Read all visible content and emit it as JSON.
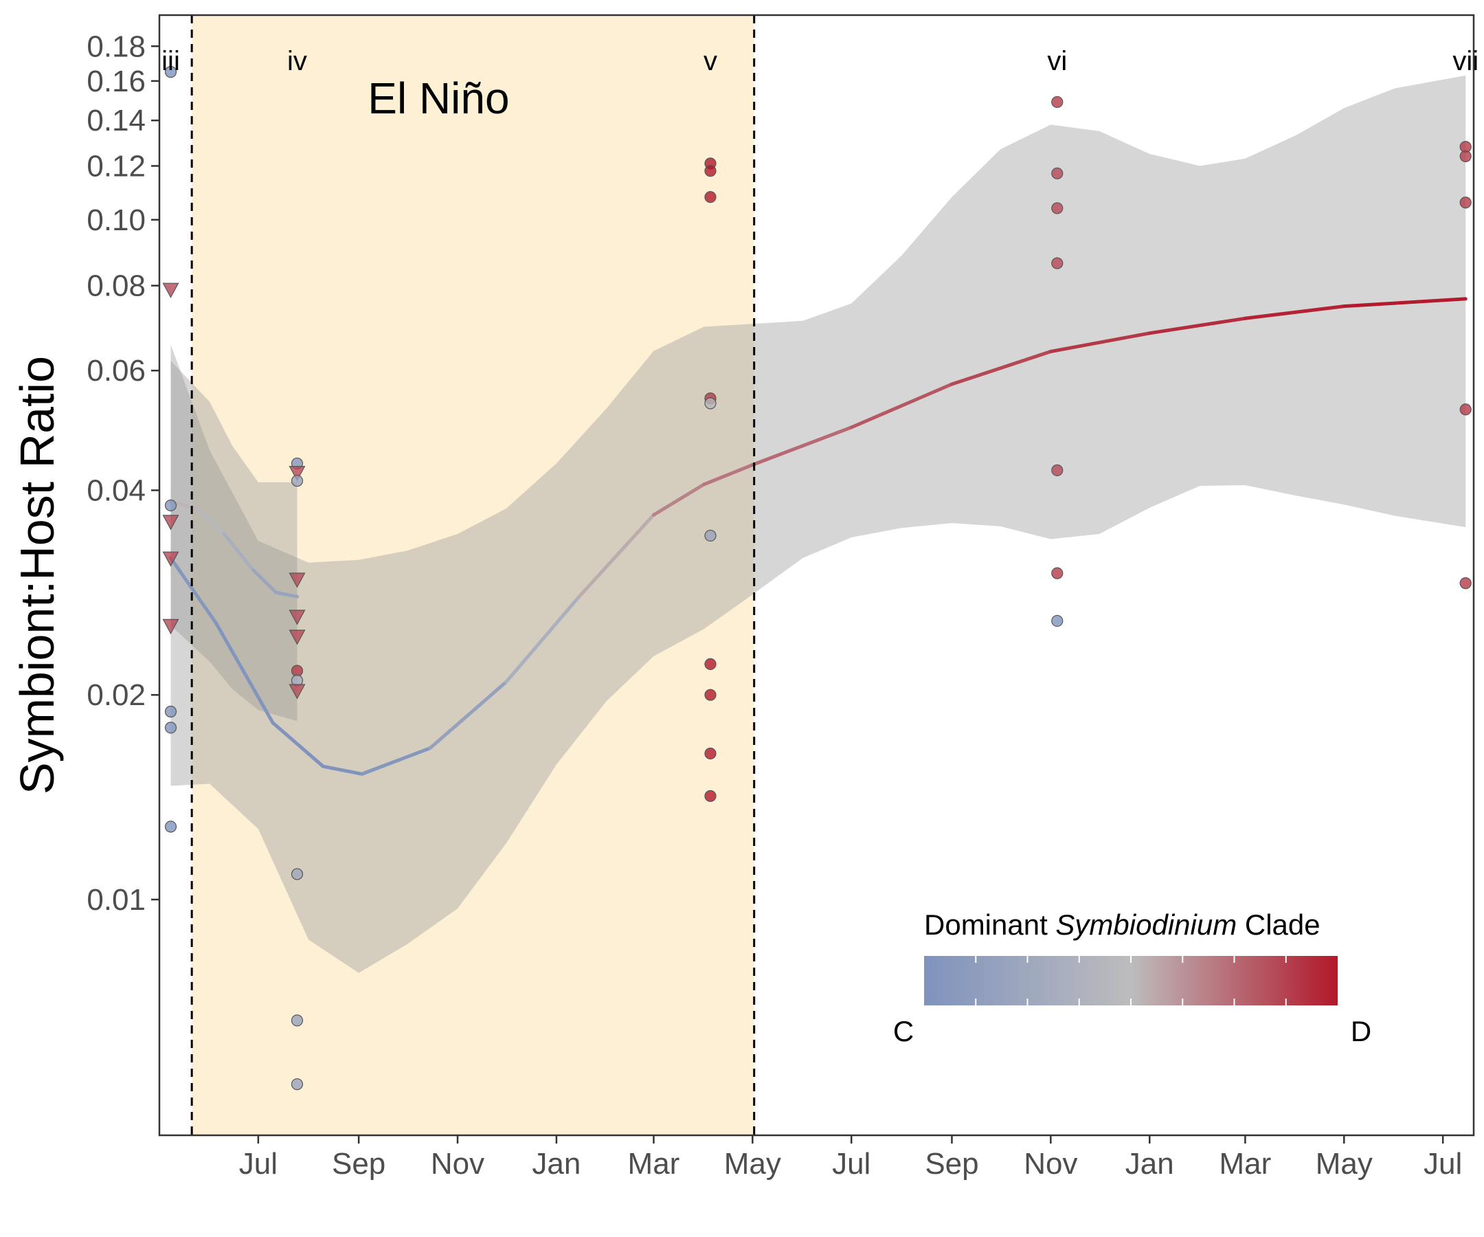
{
  "chart_data": {
    "type": "scatter",
    "title": "",
    "xlabel": "",
    "ylabel": "Symbiont:Host Ratio",
    "y_scale": "log",
    "ylim": [
      0.0045,
      0.2
    ],
    "xlim": [
      "2015-05-01",
      "2017-07-20"
    ],
    "y_ticks": [
      0.01,
      0.02,
      0.04,
      0.06,
      0.08,
      0.1,
      0.12,
      0.14,
      0.16,
      0.18
    ],
    "y_tick_labels": [
      "0.01",
      "0.02",
      "0.04",
      "0.06",
      "0.08",
      "0.10",
      "0.12",
      "0.14",
      "0.16",
      "0.18"
    ],
    "x_ticks": [
      "2015-07-01",
      "2015-09-01",
      "2015-11-01",
      "2016-01-01",
      "2016-03-01",
      "2016-05-01",
      "2016-07-01",
      "2016-09-01",
      "2016-11-01",
      "2017-01-01",
      "2017-03-01",
      "2017-05-01",
      "2017-07-01"
    ],
    "x_tick_labels": [
      "Jul",
      "Sep",
      "Nov",
      "Jan",
      "Mar",
      "May",
      "Jul",
      "Sep",
      "Nov",
      "Jan",
      "Mar",
      "May",
      "Jul"
    ],
    "grid": false,
    "el_nino": {
      "label": "El Niño",
      "start": "2015-05-21",
      "end": "2016-05-02",
      "color": "#fdf0d5"
    },
    "periods": [
      {
        "label": "iii",
        "date": "2015-05-08"
      },
      {
        "label": "iv",
        "date": "2015-07-25"
      },
      {
        "label": "v",
        "date": "2016-04-05"
      },
      {
        "label": "vi",
        "date": "2016-11-05"
      },
      {
        "label": "vii",
        "date": "2017-07-15"
      }
    ],
    "legend": {
      "title_prefix": "Dominant ",
      "title_italic": "Symbiodinium",
      "title_suffix": " Clade",
      "low_label": "C",
      "high_label": "D",
      "position": "bottom-right"
    },
    "colors": {
      "C": "#7f93bd",
      "mid": "#bdbcbd",
      "D": "#b2182b"
    },
    "points": [
      {
        "date": "2015-05-08",
        "y": 0.165,
        "c": 0.0,
        "shape": "circle"
      },
      {
        "date": "2015-05-08",
        "y": 0.079,
        "c": 0.85,
        "shape": "triangle"
      },
      {
        "date": "2015-05-08",
        "y": 0.038,
        "c": 0.05,
        "shape": "circle"
      },
      {
        "date": "2015-05-08",
        "y": 0.036,
        "c": 0.85,
        "shape": "triangle"
      },
      {
        "date": "2015-05-08",
        "y": 0.0318,
        "c": 0.85,
        "shape": "triangle"
      },
      {
        "date": "2015-05-08",
        "y": 0.0253,
        "c": 0.85,
        "shape": "triangle"
      },
      {
        "date": "2015-05-08",
        "y": 0.0189,
        "c": 0.0,
        "shape": "circle"
      },
      {
        "date": "2015-05-08",
        "y": 0.0179,
        "c": 0.0,
        "shape": "circle"
      },
      {
        "date": "2015-05-08",
        "y": 0.0128,
        "c": 0.0,
        "shape": "circle"
      },
      {
        "date": "2015-07-25",
        "y": 0.0438,
        "c": 0.05,
        "shape": "circle"
      },
      {
        "date": "2015-07-25",
        "y": 0.0425,
        "c": 0.85,
        "shape": "triangle"
      },
      {
        "date": "2015-07-25",
        "y": 0.0413,
        "c": 0.2,
        "shape": "circle"
      },
      {
        "date": "2015-07-25",
        "y": 0.0296,
        "c": 0.85,
        "shape": "triangle"
      },
      {
        "date": "2015-07-25",
        "y": 0.0261,
        "c": 0.85,
        "shape": "triangle"
      },
      {
        "date": "2015-07-25",
        "y": 0.0244,
        "c": 0.85,
        "shape": "triangle"
      },
      {
        "date": "2015-07-25",
        "y": 0.0217,
        "c": 0.9,
        "shape": "circle"
      },
      {
        "date": "2015-07-25",
        "y": 0.021,
        "c": 0.3,
        "shape": "circle"
      },
      {
        "date": "2015-07-25",
        "y": 0.0203,
        "c": 0.85,
        "shape": "triangle"
      },
      {
        "date": "2015-07-25",
        "y": 0.0109,
        "c": 0.25,
        "shape": "circle"
      },
      {
        "date": "2015-07-25",
        "y": 0.00664,
        "c": 0.2,
        "shape": "circle"
      },
      {
        "date": "2015-07-25",
        "y": 0.00535,
        "c": 0.2,
        "shape": "circle"
      },
      {
        "date": "2016-04-05",
        "y": 0.121,
        "c": 1.0,
        "shape": "circle"
      },
      {
        "date": "2016-04-05",
        "y": 0.118,
        "c": 1.0,
        "shape": "circle"
      },
      {
        "date": "2016-04-05",
        "y": 0.108,
        "c": 1.0,
        "shape": "circle"
      },
      {
        "date": "2016-04-05",
        "y": 0.0546,
        "c": 0.9,
        "shape": "circle"
      },
      {
        "date": "2016-04-05",
        "y": 0.0537,
        "c": 0.45,
        "shape": "circle"
      },
      {
        "date": "2016-04-05",
        "y": 0.0343,
        "c": 0.2,
        "shape": "circle"
      },
      {
        "date": "2016-04-05",
        "y": 0.0222,
        "c": 1.0,
        "shape": "circle"
      },
      {
        "date": "2016-04-05",
        "y": 0.02,
        "c": 1.0,
        "shape": "circle"
      },
      {
        "date": "2016-04-05",
        "y": 0.0164,
        "c": 1.0,
        "shape": "circle"
      },
      {
        "date": "2016-04-05",
        "y": 0.0142,
        "c": 1.0,
        "shape": "circle"
      },
      {
        "date": "2016-11-05",
        "y": 0.149,
        "c": 0.9,
        "shape": "circle"
      },
      {
        "date": "2016-11-05",
        "y": 0.117,
        "c": 0.85,
        "shape": "circle"
      },
      {
        "date": "2016-11-05",
        "y": 0.104,
        "c": 0.85,
        "shape": "circle"
      },
      {
        "date": "2016-11-05",
        "y": 0.0863,
        "c": 0.85,
        "shape": "circle"
      },
      {
        "date": "2016-11-05",
        "y": 0.0428,
        "c": 0.85,
        "shape": "circle"
      },
      {
        "date": "2016-11-05",
        "y": 0.0302,
        "c": 0.9,
        "shape": "circle"
      },
      {
        "date": "2016-11-05",
        "y": 0.0257,
        "c": 0.0,
        "shape": "circle"
      },
      {
        "date": "2017-07-15",
        "y": 0.128,
        "c": 0.9,
        "shape": "circle"
      },
      {
        "date": "2017-07-15",
        "y": 0.124,
        "c": 0.9,
        "shape": "circle"
      },
      {
        "date": "2017-07-15",
        "y": 0.106,
        "c": 0.9,
        "shape": "circle"
      },
      {
        "date": "2017-07-15",
        "y": 0.0526,
        "c": 0.9,
        "shape": "circle"
      },
      {
        "date": "2017-07-15",
        "y": 0.0292,
        "c": 0.9,
        "shape": "circle"
      }
    ],
    "trend_long": {
      "line": [
        {
          "date": "2015-05-08",
          "y": 0.0318,
          "c": 0.05
        },
        {
          "date": "2015-06-05",
          "y": 0.0255,
          "c": 0.05
        },
        {
          "date": "2015-07-10",
          "y": 0.0182,
          "c": 0.0
        },
        {
          "date": "2015-08-10",
          "y": 0.0157,
          "c": 0.0
        },
        {
          "date": "2015-09-03",
          "y": 0.0153,
          "c": 0.0
        },
        {
          "date": "2015-10-15",
          "y": 0.0167,
          "c": 0.1
        },
        {
          "date": "2015-12-01",
          "y": 0.0209,
          "c": 0.25
        },
        {
          "date": "2016-01-15",
          "y": 0.0279,
          "c": 0.45
        },
        {
          "date": "2016-03-01",
          "y": 0.0368,
          "c": 0.65
        },
        {
          "date": "2016-04-01",
          "y": 0.0408,
          "c": 0.7
        },
        {
          "date": "2016-05-01",
          "y": 0.0436,
          "c": 0.72
        },
        {
          "date": "2016-07-01",
          "y": 0.0495,
          "c": 0.78
        },
        {
          "date": "2016-09-01",
          "y": 0.0573,
          "c": 0.83
        },
        {
          "date": "2016-11-01",
          "y": 0.064,
          "c": 0.88
        },
        {
          "date": "2017-01-01",
          "y": 0.0681,
          "c": 0.92
        },
        {
          "date": "2017-03-01",
          "y": 0.0716,
          "c": 0.95
        },
        {
          "date": "2017-05-01",
          "y": 0.0746,
          "c": 0.98
        },
        {
          "date": "2017-07-15",
          "y": 0.0765,
          "c": 1.0
        }
      ],
      "ci_upper": [
        {
          "date": "2015-05-08",
          "y": 0.0655
        },
        {
          "date": "2015-06-01",
          "y": 0.0458
        },
        {
          "date": "2015-07-01",
          "y": 0.0337
        },
        {
          "date": "2015-08-01",
          "y": 0.0313
        },
        {
          "date": "2015-09-01",
          "y": 0.0316
        },
        {
          "date": "2015-10-01",
          "y": 0.0326
        },
        {
          "date": "2015-11-01",
          "y": 0.0345
        },
        {
          "date": "2015-12-01",
          "y": 0.0376
        },
        {
          "date": "2016-01-01",
          "y": 0.0438
        },
        {
          "date": "2016-02-01",
          "y": 0.0528
        },
        {
          "date": "2016-03-01",
          "y": 0.0641
        },
        {
          "date": "2016-04-01",
          "y": 0.0696
        },
        {
          "date": "2016-05-01",
          "y": 0.0703
        },
        {
          "date": "2016-06-01",
          "y": 0.071
        },
        {
          "date": "2016-07-01",
          "y": 0.0753
        },
        {
          "date": "2016-08-01",
          "y": 0.0886
        },
        {
          "date": "2016-09-01",
          "y": 0.108
        },
        {
          "date": "2016-10-01",
          "y": 0.127
        },
        {
          "date": "2016-11-01",
          "y": 0.138
        },
        {
          "date": "2016-12-01",
          "y": 0.135
        },
        {
          "date": "2017-01-01",
          "y": 0.125
        },
        {
          "date": "2017-02-01",
          "y": 0.12
        },
        {
          "date": "2017-03-01",
          "y": 0.123
        },
        {
          "date": "2017-04-01",
          "y": 0.133
        },
        {
          "date": "2017-05-01",
          "y": 0.146
        },
        {
          "date": "2017-06-01",
          "y": 0.156
        },
        {
          "date": "2017-07-15",
          "y": 0.163
        }
      ],
      "ci_lower": [
        {
          "date": "2015-05-08",
          "y": 0.0147
        },
        {
          "date": "2015-06-01",
          "y": 0.0148
        },
        {
          "date": "2015-07-01",
          "y": 0.0127
        },
        {
          "date": "2015-08-01",
          "y": 0.00873
        },
        {
          "date": "2015-09-01",
          "y": 0.0078
        },
        {
          "date": "2015-10-01",
          "y": 0.0086
        },
        {
          "date": "2015-11-01",
          "y": 0.0097
        },
        {
          "date": "2015-12-01",
          "y": 0.0121
        },
        {
          "date": "2016-01-01",
          "y": 0.0158
        },
        {
          "date": "2016-02-01",
          "y": 0.0196
        },
        {
          "date": "2016-03-01",
          "y": 0.0228
        },
        {
          "date": "2016-04-01",
          "y": 0.025
        },
        {
          "date": "2016-05-01",
          "y": 0.0281
        },
        {
          "date": "2016-06-01",
          "y": 0.0318
        },
        {
          "date": "2016-07-01",
          "y": 0.0341
        },
        {
          "date": "2016-08-01",
          "y": 0.0352
        },
        {
          "date": "2016-09-01",
          "y": 0.0358
        },
        {
          "date": "2016-10-01",
          "y": 0.0354
        },
        {
          "date": "2016-11-01",
          "y": 0.0339
        },
        {
          "date": "2016-12-01",
          "y": 0.0345
        },
        {
          "date": "2017-01-01",
          "y": 0.0377
        },
        {
          "date": "2017-02-01",
          "y": 0.0406
        },
        {
          "date": "2017-03-01",
          "y": 0.0407
        },
        {
          "date": "2017-04-01",
          "y": 0.0393
        },
        {
          "date": "2017-05-01",
          "y": 0.0381
        },
        {
          "date": "2017-06-01",
          "y": 0.0367
        },
        {
          "date": "2017-07-15",
          "y": 0.0353
        }
      ]
    },
    "trend_short": {
      "line": [
        {
          "date": "2015-05-08",
          "y": 0.0385,
          "c": 0.55
        },
        {
          "date": "2015-05-25",
          "y": 0.0375,
          "c": 0.5
        },
        {
          "date": "2015-06-10",
          "y": 0.0345,
          "c": 0.4
        },
        {
          "date": "2015-06-28",
          "y": 0.0305,
          "c": 0.25
        },
        {
          "date": "2015-07-12",
          "y": 0.0283,
          "c": 0.2
        },
        {
          "date": "2015-07-25",
          "y": 0.0279,
          "c": 0.2
        }
      ],
      "ci_upper": [
        {
          "date": "2015-05-08",
          "y": 0.062
        },
        {
          "date": "2015-06-01",
          "y": 0.054
        },
        {
          "date": "2015-06-15",
          "y": 0.0465
        },
        {
          "date": "2015-07-01",
          "y": 0.0411
        },
        {
          "date": "2015-07-25",
          "y": 0.0411
        }
      ],
      "ci_lower": [
        {
          "date": "2015-05-08",
          "y": 0.0253
        },
        {
          "date": "2015-06-01",
          "y": 0.0224
        },
        {
          "date": "2015-06-15",
          "y": 0.0204
        },
        {
          "date": "2015-07-01",
          "y": 0.019
        },
        {
          "date": "2015-07-25",
          "y": 0.0183
        }
      ]
    }
  }
}
